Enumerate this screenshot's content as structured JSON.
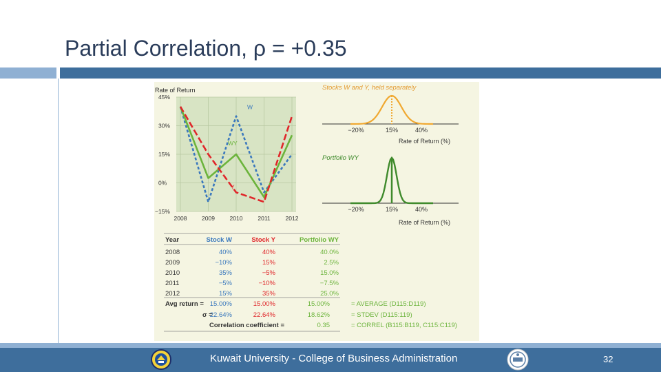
{
  "slide": {
    "title": "Partial Correlation, ρ = +0.35",
    "footer_text": "Kuwait University - College of Business Administration",
    "page_number": "32",
    "logos": [
      "kuwait-university-logo-icon",
      "aacsb-accreditation-logo-icon"
    ]
  },
  "chart_data": [
    {
      "type": "line",
      "ylabel": "Rate of Return",
      "x": [
        "2008",
        "2009",
        "2010",
        "2011",
        "2012"
      ],
      "y_ticks": [
        "45%",
        "30%",
        "15%",
        "0%",
        "−15%"
      ],
      "ylim": [
        -15,
        45
      ],
      "grid": true,
      "series": [
        {
          "name": "W",
          "values": [
            40,
            -10,
            35,
            -5,
            15
          ],
          "color": "#3a78bd",
          "style": "dotted"
        },
        {
          "name": "WY",
          "values": [
            40.0,
            2.5,
            15.0,
            -7.5,
            25.0
          ],
          "color": "#6cb43c",
          "style": "solid"
        },
        {
          "name": "Y",
          "values": [
            40,
            15,
            -5,
            -10,
            35
          ],
          "color": "#e0262a",
          "style": "dashed"
        }
      ]
    },
    {
      "type": "area",
      "title": "Stocks W and Y, held separately",
      "x_ticks": [
        "−20%",
        "15%",
        "40%"
      ],
      "xlabel": "Rate of Return (%)",
      "mean": 15,
      "color": "#f0a830"
    },
    {
      "type": "area",
      "title": "Portfolio WY",
      "x_ticks": [
        "−20%",
        "15%",
        "40%"
      ],
      "xlabel": "Rate of Return (%)",
      "mean": 15,
      "color": "#3f8a2c"
    },
    {
      "type": "table",
      "headers": [
        "Year",
        "Stock W",
        "Stock Y",
        "Portfolio WY"
      ],
      "rows": [
        [
          "2008",
          "40%",
          "40%",
          "40.0%"
        ],
        [
          "2009",
          "−10%",
          "15%",
          "2.5%"
        ],
        [
          "2010",
          "35%",
          "−5%",
          "15.0%"
        ],
        [
          "2011",
          "−5%",
          "−10%",
          "−7.5%"
        ],
        [
          "2012",
          "15%",
          "35%",
          "25.0%"
        ]
      ],
      "summary": [
        {
          "label": "Avg return =",
          "w": "15.00%",
          "y": "15.00%",
          "wy": "15.00%",
          "formula": "= AVERAGE (D115:D119)"
        },
        {
          "label": "σ =",
          "w": "22.64%",
          "y": "22.64%",
          "wy": "18.62%",
          "formula": "= STDEV (D115:119)"
        },
        {
          "label": "Correlation coefficient =",
          "wy": "0.35",
          "formula": "= CORREL (B115:B119, C115:C119)"
        }
      ]
    }
  ]
}
